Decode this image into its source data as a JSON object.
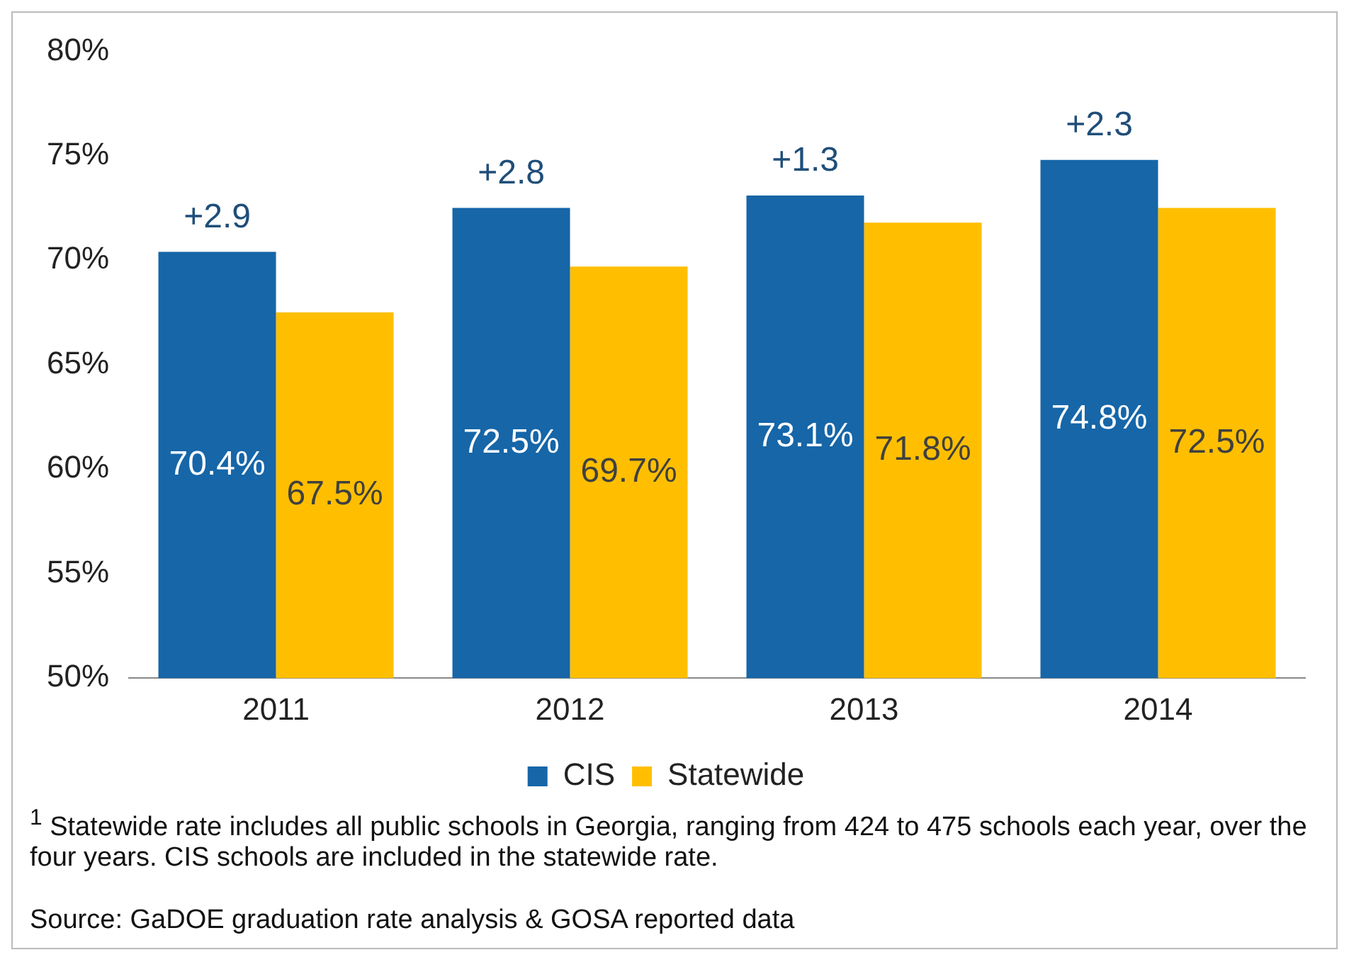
{
  "chart_data": {
    "type": "bar",
    "categories": [
      "2011",
      "2012",
      "2013",
      "2014"
    ],
    "series": [
      {
        "name": "CIS",
        "color": "#1666a8",
        "values": [
          70.4,
          72.5,
          73.1,
          74.8
        ],
        "value_labels": [
          "70.4%",
          "72.5%",
          "73.1%",
          "74.8%"
        ]
      },
      {
        "name": "Statewide",
        "color": "#ffbf00",
        "values": [
          67.5,
          69.7,
          71.8,
          72.5
        ],
        "value_labels": [
          "67.5%",
          "69.7%",
          "71.8%",
          "72.5%"
        ]
      }
    ],
    "ylim": [
      50,
      80
    ],
    "yticks": [
      {
        "value": 50,
        "label": "50%"
      },
      {
        "value": 55,
        "label": "55%"
      },
      {
        "value": 60,
        "label": "60%"
      },
      {
        "value": 65,
        "label": "65%"
      },
      {
        "value": 70,
        "label": "70%"
      },
      {
        "value": 75,
        "label": "75%"
      },
      {
        "value": 80,
        "label": "80%"
      }
    ],
    "grid": false,
    "legend": "bottom",
    "annotations": [
      {
        "text": "+2.9",
        "x": "2011",
        "y": 70.4
      },
      {
        "text": "+2.8",
        "x": "2012",
        "y": 72.5
      },
      {
        "text": "+1.3",
        "x": "2013",
        "y": 73.1
      },
      {
        "text": "+2.3",
        "x": "2014",
        "y": 74.8
      },
      "$^{1}$ Statewide rate includes all public schools in Georgia, ranging from 424 to 475 schools each year, over the four years. CIS schools are included in the statewide rate.",
      "Source: GaDOE graduation rate analysis & GOSA reported data"
    ]
  }
}
